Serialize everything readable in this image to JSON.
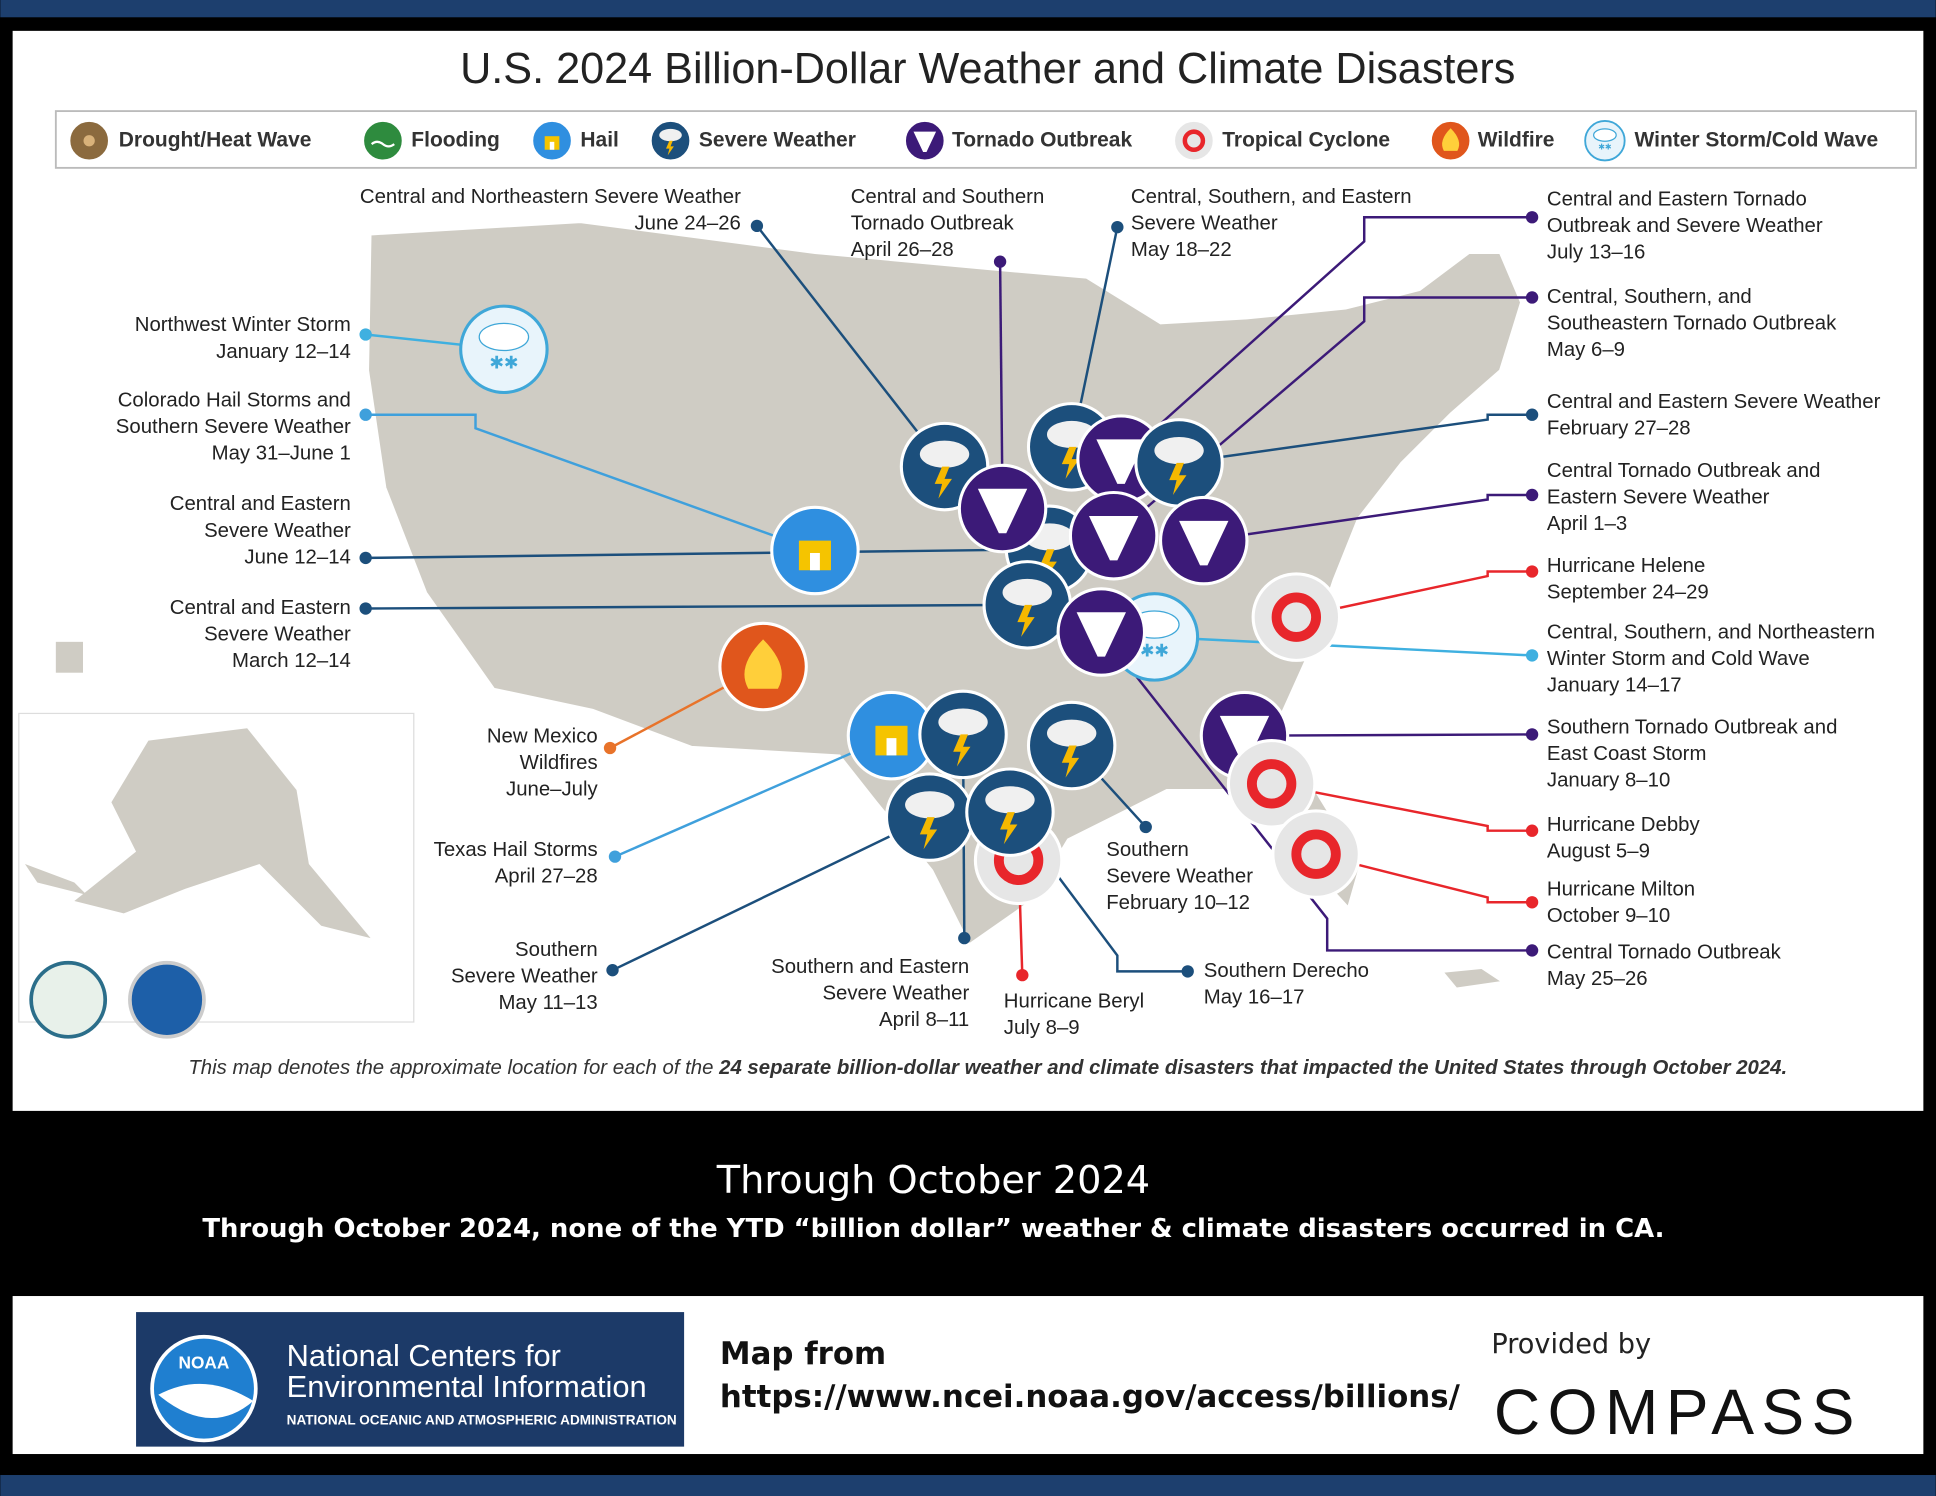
{
  "title": "U.S. 2024 Billion-Dollar Weather and Climate Disasters",
  "legend": [
    "Drought/Heat Wave",
    "Flooding",
    "Hail",
    "Severe Weather",
    "Tornado Outbreak",
    "Tropical Cyclone",
    "Wildfire",
    "Winter Storm/Cold Wave"
  ],
  "events": [
    [
      "Central and Northeastern Severe Weather",
      "June 24–26"
    ],
    [
      "Northwest Winter Storm",
      "January 12–14"
    ],
    [
      "Colorado Hail Storms and",
      "Southern Severe Weather",
      "May 31–June 1"
    ],
    [
      "Central and Eastern",
      "Severe Weather",
      "June 12–14"
    ],
    [
      "Central and Eastern",
      "Severe Weather",
      "March 12–14"
    ],
    [
      "New Mexico",
      "Wildfires",
      "June–July"
    ],
    [
      "Texas Hail Storms",
      "April 27–28"
    ],
    [
      "Southern",
      "Severe Weather",
      "May 11–13"
    ],
    [
      "Southern and Eastern",
      "Severe Weather",
      "April 8–11"
    ],
    [
      "Hurricane Beryl",
      "July 8–9"
    ],
    [
      "Southern Derecho",
      "May 16–17"
    ],
    [
      "Southern",
      "Severe Weather",
      "February 10–12"
    ],
    [
      "Central and Southern",
      "Tornado Outbreak",
      "April 26–28"
    ],
    [
      "Central, Southern, and Eastern",
      "Severe Weather",
      "May 18–22"
    ],
    [
      "Central and Eastern Tornado",
      "Outbreak and Severe Weather",
      "July 13–16"
    ],
    [
      "Central, Southern, and",
      "Southeastern Tornado Outbreak",
      "May 6–9"
    ],
    [
      "Central and Eastern Severe Weather",
      "February 27–28"
    ],
    [
      "Central Tornado Outbreak and",
      "Eastern Severe Weather",
      "April 1–3"
    ],
    [
      "Hurricane Helene",
      "September 24–29"
    ],
    [
      "Central, Southern, and Northeastern",
      "Winter Storm and Cold Wave",
      "January 14–17"
    ],
    [
      "Southern Tornado Outbreak and",
      "East Coast Storm",
      "January 8–10"
    ],
    [
      "Hurricane Debby",
      "August 5–9"
    ],
    [
      "Hurricane Milton",
      "October 9–10"
    ],
    [
      "Central Tornado Outbreak",
      "May 25–26"
    ]
  ],
  "footnote": {
    "text": "This map denotes the approximate location for each of the ",
    "emphasis": "24 separate billion-dollar weather and climate disasters that impacted the United States through October 2024."
  },
  "banner": {
    "heading": "Through October 2024",
    "text": "Through October 2024, none of the YTD “billion dollar” weather & climate disasters occurred in CA."
  },
  "footer": {
    "logo": "NOAA",
    "org_line1": "National Centers for",
    "org_line2": "Environmental Information",
    "org_sub": "NATIONAL OCEANIC AND ATMOSPHERIC ADMINISTRATION",
    "source_label": "Map from",
    "source_url": "https://www.ncei.noaa.gov/access/billions/",
    "provided_by": "Provided by",
    "brand": "COMPASS"
  }
}
